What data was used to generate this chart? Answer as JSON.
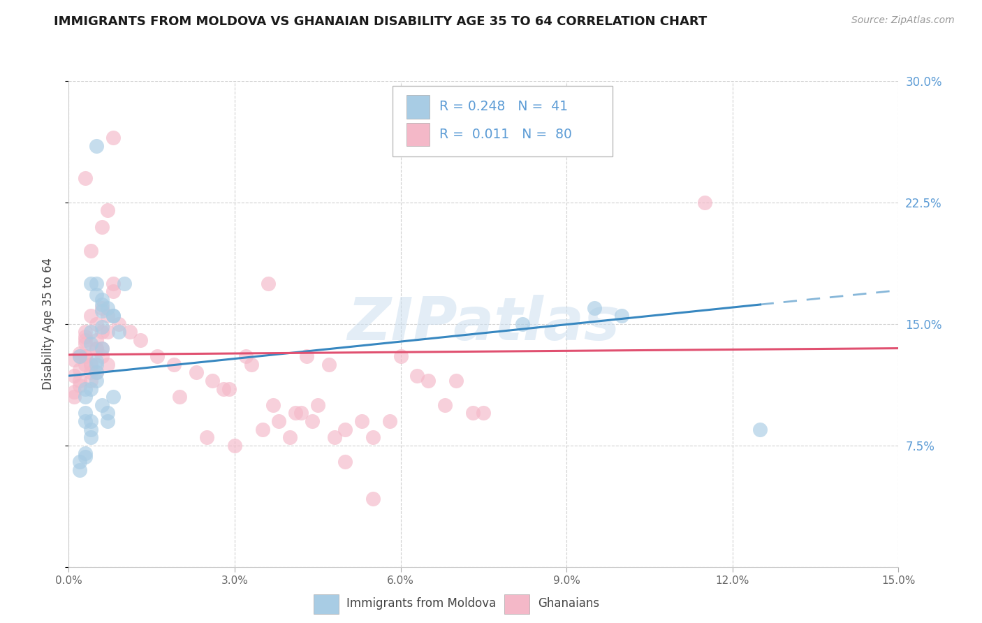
{
  "title": "IMMIGRANTS FROM MOLDOVA VS GHANAIAN DISABILITY AGE 35 TO 64 CORRELATION CHART",
  "source": "Source: ZipAtlas.com",
  "ylabel_left": "Disability Age 35 to 64",
  "legend_label1": "Immigrants from Moldova",
  "legend_label2": "Ghanaians",
  "R1": "0.248",
  "N1": "41",
  "R2": "0.011",
  "N2": "80",
  "blue_scatter_color": "#a8cce4",
  "pink_scatter_color": "#f4b8c8",
  "blue_line_color": "#3787c0",
  "pink_line_color": "#e05070",
  "right_axis_color": "#5b9bd5",
  "watermark": "ZIPatlas",
  "watermark_color": "#ccdff0",
  "xlim": [
    0.0,
    0.15
  ],
  "ylim": [
    0.0,
    0.3
  ],
  "xticks": [
    0.0,
    0.03,
    0.06,
    0.09,
    0.12,
    0.15
  ],
  "xticklabels": [
    "0.0%",
    "3.0%",
    "6.0%",
    "9.0%",
    "12.0%",
    "15.0%"
  ],
  "yticks_right": [
    0.075,
    0.15,
    0.225,
    0.3
  ],
  "yticklabels_right": [
    "7.5%",
    "15.0%",
    "22.5%",
    "30.0%"
  ],
  "blue_scatter_x": [
    0.01,
    0.005,
    0.008,
    0.003,
    0.004,
    0.006,
    0.005,
    0.002,
    0.004,
    0.006,
    0.005,
    0.007,
    0.003,
    0.004,
    0.008,
    0.005,
    0.006,
    0.003,
    0.004,
    0.002,
    0.005,
    0.006,
    0.003,
    0.004,
    0.007,
    0.008,
    0.005,
    0.006,
    0.003,
    0.004,
    0.009,
    0.007,
    0.006,
    0.005,
    0.004,
    0.003,
    0.082,
    0.095,
    0.1,
    0.125,
    0.002
  ],
  "blue_scatter_y": [
    0.175,
    0.127,
    0.105,
    0.068,
    0.145,
    0.158,
    0.168,
    0.13,
    0.138,
    0.148,
    0.125,
    0.095,
    0.09,
    0.08,
    0.155,
    0.26,
    0.162,
    0.11,
    0.175,
    0.065,
    0.12,
    0.135,
    0.07,
    0.085,
    0.16,
    0.155,
    0.175,
    0.165,
    0.105,
    0.09,
    0.145,
    0.09,
    0.1,
    0.115,
    0.11,
    0.095,
    0.15,
    0.16,
    0.155,
    0.085,
    0.06
  ],
  "pink_scatter_x": [
    0.003,
    0.005,
    0.007,
    0.004,
    0.006,
    0.002,
    0.008,
    0.003,
    0.005,
    0.004,
    0.006,
    0.007,
    0.003,
    0.004,
    0.005,
    0.006,
    0.008,
    0.003,
    0.004,
    0.007,
    0.005,
    0.006,
    0.003,
    0.004,
    0.008,
    0.005,
    0.006,
    0.003,
    0.004,
    0.007,
    0.001,
    0.002,
    0.001,
    0.002,
    0.001,
    0.003,
    0.002,
    0.001,
    0.002,
    0.003,
    0.02,
    0.025,
    0.03,
    0.035,
    0.038,
    0.04,
    0.042,
    0.045,
    0.048,
    0.05,
    0.053,
    0.055,
    0.058,
    0.06,
    0.063,
    0.065,
    0.068,
    0.07,
    0.073,
    0.075,
    0.028,
    0.032,
    0.036,
    0.043,
    0.047,
    0.009,
    0.011,
    0.013,
    0.016,
    0.019,
    0.023,
    0.026,
    0.029,
    0.033,
    0.037,
    0.041,
    0.044,
    0.115,
    0.05,
    0.055
  ],
  "pink_scatter_y": [
    0.145,
    0.135,
    0.22,
    0.195,
    0.21,
    0.13,
    0.17,
    0.14,
    0.12,
    0.155,
    0.145,
    0.125,
    0.13,
    0.115,
    0.15,
    0.16,
    0.265,
    0.24,
    0.125,
    0.155,
    0.135,
    0.13,
    0.125,
    0.12,
    0.175,
    0.14,
    0.135,
    0.13,
    0.125,
    0.145,
    0.128,
    0.132,
    0.118,
    0.122,
    0.108,
    0.138,
    0.115,
    0.105,
    0.112,
    0.142,
    0.105,
    0.08,
    0.075,
    0.085,
    0.09,
    0.08,
    0.095,
    0.1,
    0.08,
    0.085,
    0.09,
    0.08,
    0.09,
    0.13,
    0.118,
    0.115,
    0.1,
    0.115,
    0.095,
    0.095,
    0.11,
    0.13,
    0.175,
    0.13,
    0.125,
    0.15,
    0.145,
    0.14,
    0.13,
    0.125,
    0.12,
    0.115,
    0.11,
    0.125,
    0.1,
    0.095,
    0.09,
    0.225,
    0.065,
    0.042
  ]
}
